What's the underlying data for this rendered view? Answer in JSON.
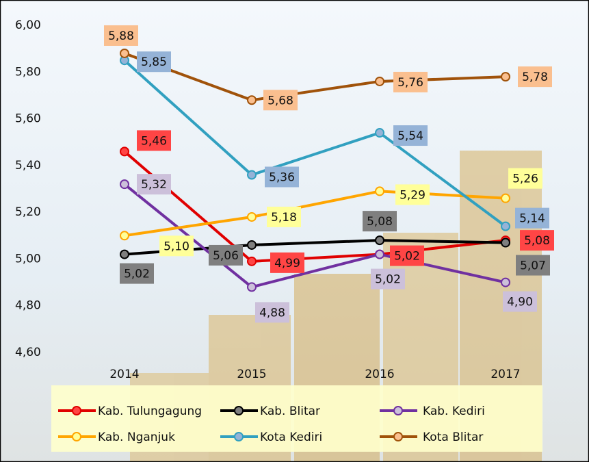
{
  "chart_data": {
    "type": "line",
    "categories": [
      "2014",
      "2015",
      "2016",
      "2017"
    ],
    "ylim": [
      4.6,
      6.0
    ],
    "yticks": [
      {
        "value": 4.6,
        "label": "4,60"
      },
      {
        "value": 4.8,
        "label": "4,80"
      },
      {
        "value": 5.0,
        "label": "5,00"
      },
      {
        "value": 5.2,
        "label": "5,20"
      },
      {
        "value": 5.4,
        "label": "5,40"
      },
      {
        "value": 5.6,
        "label": "5,60"
      },
      {
        "value": 5.8,
        "label": "5,80"
      },
      {
        "value": 6.0,
        "label": "6,00"
      }
    ],
    "grid": false,
    "legend": "bottom",
    "series": [
      {
        "name": "Kab. Tulungagung",
        "color": "#e00000",
        "label_color": "#ff4545",
        "values": [
          5.46,
          4.99,
          5.02,
          5.08
        ],
        "value_labels": [
          "5,46",
          "4,99",
          "5,02",
          "5,08"
        ]
      },
      {
        "name": "Kab. Blitar",
        "color": "#000000",
        "label_color": "#7f7f7f",
        "values": [
          5.02,
          5.06,
          5.08,
          5.07
        ],
        "value_labels": [
          "5,02",
          "5,06",
          "5,08",
          "5,07"
        ]
      },
      {
        "name": "Kab. Kediri",
        "color": "#7030a0",
        "label_color": "#ccc0da",
        "values": [
          5.32,
          4.88,
          5.02,
          4.9
        ],
        "value_labels": [
          "5,32",
          "4,88",
          "5,02",
          "4,90"
        ]
      },
      {
        "name": "Kab. Nganjuk",
        "color": "#ffa500",
        "label_color": "#ffff99",
        "values": [
          5.1,
          5.18,
          5.29,
          5.26
        ],
        "value_labels": [
          "5,10",
          "5,18",
          "5,29",
          "5,26"
        ]
      },
      {
        "name": "Kota Kediri",
        "color": "#31a0c0",
        "label_color": "#95b3d7",
        "values": [
          5.85,
          5.36,
          5.54,
          5.14
        ],
        "value_labels": [
          "5,85",
          "5,36",
          "5,54",
          "5,14"
        ]
      },
      {
        "name": "Kota Blitar",
        "color": "#a0520a",
        "label_color": "#fabf8f",
        "values": [
          5.88,
          5.68,
          5.76,
          5.78
        ],
        "value_labels": [
          "5,88",
          "5,68",
          "5,76",
          "5,78"
        ]
      }
    ]
  }
}
